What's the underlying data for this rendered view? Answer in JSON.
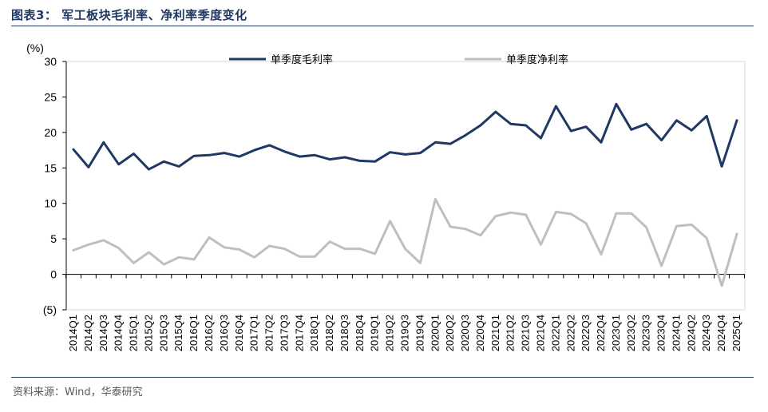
{
  "header": {
    "title": "图表3： 军工板块毛利率、净利率季度变化"
  },
  "footer": {
    "source": "资料来源：Wind，华泰研究"
  },
  "colors": {
    "gross": "#1f3864",
    "net": "#bfbfbf",
    "axis": "#000000",
    "rule": "#1f3864"
  },
  "chart_data": {
    "type": "line",
    "ylabel": "(%)",
    "ylim": [
      -5,
      30
    ],
    "yticks": [
      {
        "value": 30,
        "label": "30"
      },
      {
        "value": 25,
        "label": "25"
      },
      {
        "value": 20,
        "label": "20"
      },
      {
        "value": 15,
        "label": "15"
      },
      {
        "value": 10,
        "label": "10"
      },
      {
        "value": 5,
        "label": "5"
      },
      {
        "value": 0,
        "label": "0"
      },
      {
        "value": -5,
        "label": "(5)"
      }
    ],
    "grid": false,
    "legend_placement": "top",
    "categories": [
      "2014Q1",
      "2014Q2",
      "2014Q3",
      "2014Q4",
      "2015Q1",
      "2015Q2",
      "2015Q3",
      "2015Q4",
      "2016Q1",
      "2016Q2",
      "2016Q3",
      "2016Q4",
      "2017Q1",
      "2017Q2",
      "2017Q3",
      "2017Q4",
      "2018Q1",
      "2018Q2",
      "2018Q3",
      "2018Q4",
      "2019Q1",
      "2019Q2",
      "2019Q3",
      "2019Q4",
      "2020Q1",
      "2020Q2",
      "2020Q3",
      "2020Q4",
      "2021Q1",
      "2021Q2",
      "2021Q3",
      "2021Q4",
      "2022Q1",
      "2022Q2",
      "2022Q3",
      "2022Q4",
      "2023Q1",
      "2023Q2",
      "2023Q3",
      "2023Q4",
      "2024Q1",
      "2024Q2",
      "2024Q3",
      "2024Q4",
      "2025Q1"
    ],
    "series": [
      {
        "name": "单季度毛利率",
        "color": "#1f3864",
        "values": [
          17.6,
          15.1,
          18.6,
          15.5,
          17.0,
          14.8,
          15.9,
          15.2,
          16.7,
          16.8,
          17.1,
          16.6,
          17.5,
          18.2,
          17.3,
          16.6,
          16.8,
          16.2,
          16.5,
          16.0,
          15.9,
          17.2,
          16.9,
          17.1,
          18.6,
          18.4,
          19.6,
          21.0,
          22.9,
          21.2,
          21.0,
          19.2,
          23.7,
          20.2,
          20.8,
          18.6,
          24.0,
          20.4,
          21.2,
          18.9,
          21.7,
          20.3,
          22.3,
          15.2,
          21.7
        ]
      },
      {
        "name": "单季度净利率",
        "color": "#bfbfbf",
        "values": [
          3.4,
          4.2,
          4.8,
          3.7,
          1.6,
          3.1,
          1.4,
          2.4,
          2.1,
          5.2,
          3.8,
          3.5,
          2.4,
          4.0,
          3.6,
          2.5,
          2.5,
          4.6,
          3.6,
          3.6,
          2.9,
          7.5,
          3.6,
          1.6,
          10.6,
          6.7,
          6.4,
          5.5,
          8.2,
          8.7,
          8.4,
          4.2,
          8.8,
          8.5,
          7.2,
          2.8,
          8.6,
          8.6,
          6.6,
          1.2,
          6.8,
          7.0,
          5.1,
          -1.6,
          5.7
        ]
      }
    ]
  }
}
